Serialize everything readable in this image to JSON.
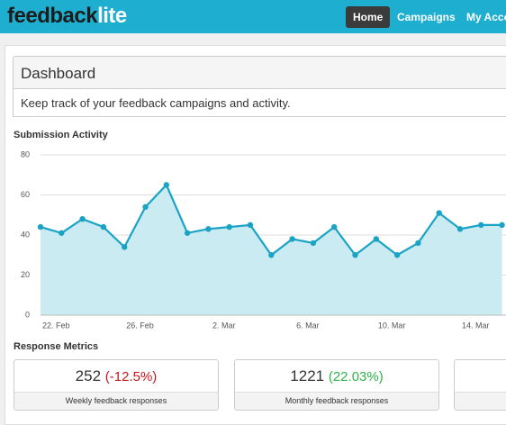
{
  "header": {
    "logo_main": "feedback",
    "logo_accent": "lite",
    "nav": [
      "Home",
      "Campaigns",
      "My Account"
    ]
  },
  "page": {
    "title": "Dashboard",
    "subtitle": "Keep track of your feedback campaigns and activity."
  },
  "chart_data": {
    "type": "line",
    "title": "Submission Activity",
    "categories": [
      null,
      "22. Feb",
      null,
      null,
      null,
      "26. Feb",
      null,
      null,
      null,
      "2. Mar",
      null,
      null,
      null,
      "6. Mar",
      null,
      null,
      null,
      "10. Mar",
      null,
      null,
      null,
      "14. Mar",
      null
    ],
    "values": [
      44,
      41,
      48,
      44,
      34,
      54,
      65,
      41,
      43,
      44,
      45,
      30,
      38,
      36,
      44,
      30,
      38,
      30,
      36,
      51,
      43,
      45,
      45
    ],
    "color": "#1aa3c4",
    "fill": "#cbebf3",
    "ylim": [
      0,
      80
    ],
    "yticks": [
      0,
      20,
      40,
      60,
      80
    ],
    "grid": true
  },
  "metrics": {
    "title": "Response Metrics",
    "cards": [
      {
        "value": 252,
        "change": "(-12.5%)",
        "label": "Weekly feedback responses"
      },
      {
        "value": 1221,
        "change": "(22.03%)",
        "label": "Monthly feedback responses"
      }
    ]
  }
}
